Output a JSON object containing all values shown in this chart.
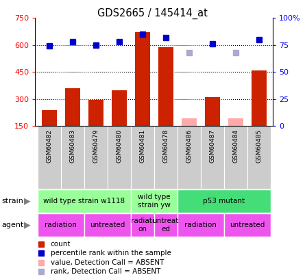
{
  "title": "GDS2665 / 145414_at",
  "samples": [
    "GSM60482",
    "GSM60483",
    "GSM60479",
    "GSM60480",
    "GSM60481",
    "GSM60478",
    "GSM60486",
    "GSM60487",
    "GSM60484",
    "GSM60485"
  ],
  "counts": [
    240,
    360,
    295,
    350,
    670,
    590,
    null,
    310,
    null,
    460
  ],
  "counts_absent": [
    null,
    null,
    null,
    null,
    null,
    null,
    195,
    null,
    195,
    null
  ],
  "ranks": [
    74,
    78,
    75,
    78,
    85,
    82,
    null,
    76,
    null,
    80
  ],
  "ranks_absent": [
    null,
    null,
    null,
    null,
    null,
    null,
    68,
    null,
    68,
    null
  ],
  "ylim_left": [
    150,
    750
  ],
  "ylim_right": [
    0,
    100
  ],
  "yticks_left": [
    150,
    300,
    450,
    600,
    750
  ],
  "yticks_right": [
    0,
    25,
    50,
    75,
    100
  ],
  "ytick_labels_left": [
    "150",
    "300",
    "450",
    "600",
    "750"
  ],
  "ytick_labels_right": [
    "0",
    "25",
    "50",
    "75",
    "100%"
  ],
  "hlines": [
    300,
    450,
    600
  ],
  "bar_color": "#cc2200",
  "bar_absent_color": "#ffaaaa",
  "rank_color": "#0000cc",
  "rank_absent_color": "#aaaacc",
  "strain_groups": [
    {
      "label": "wild type strain w1118",
      "span": [
        0,
        3
      ],
      "color": "#99ff99"
    },
    {
      "label": "wild type\nstrain yw",
      "span": [
        4,
        5
      ],
      "color": "#99ff99"
    },
    {
      "label": "p53 mutant",
      "span": [
        6,
        9
      ],
      "color": "#44dd77"
    }
  ],
  "agent_groups": [
    {
      "label": "radiation",
      "span": [
        0,
        1
      ],
      "color": "#ee55ee"
    },
    {
      "label": "untreated",
      "span": [
        2,
        3
      ],
      "color": "#ee55ee"
    },
    {
      "label": "radiati\non",
      "span": [
        4,
        4
      ],
      "color": "#ee55ee"
    },
    {
      "label": "untreat\ned",
      "span": [
        5,
        5
      ],
      "color": "#ee55ee"
    },
    {
      "label": "radiation",
      "span": [
        6,
        7
      ],
      "color": "#ee55ee"
    },
    {
      "label": "untreated",
      "span": [
        8,
        9
      ],
      "color": "#ee55ee"
    }
  ],
  "legend": [
    {
      "label": "count",
      "color": "#cc2200"
    },
    {
      "label": "percentile rank within the sample",
      "color": "#0000cc"
    },
    {
      "label": "value, Detection Call = ABSENT",
      "color": "#ffaaaa"
    },
    {
      "label": "rank, Detection Call = ABSENT",
      "color": "#aaaacc"
    }
  ],
  "label_area_color": "#cccccc",
  "xlabel_area_color": "#bbbbbb"
}
